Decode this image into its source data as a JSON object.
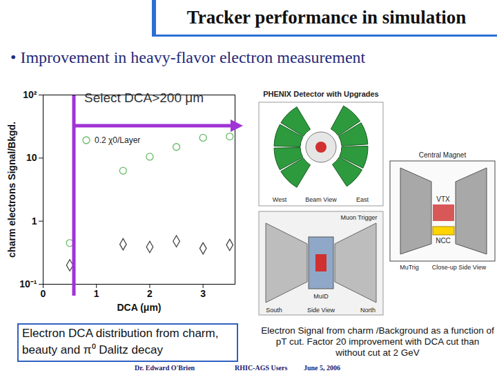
{
  "chart_data": {
    "type": "scatter",
    "title": "Tracker performance in simulation",
    "subtitle": "• Improvement in heavy-flavor electron measurement",
    "x_label": "DCA (μm)",
    "y_label": "charm electrons Signal/Bkgd.",
    "x": [
      0.5,
      1.5,
      2,
      2.5,
      3,
      3.5
    ],
    "series": [
      {
        "name": "0.2 χ0/Layer",
        "color": "#66bb66",
        "marker": "circle",
        "values": [
          0.45,
          6.3,
          10.5,
          15,
          21,
          22
        ]
      },
      {
        "color": "#444444",
        "marker": "diamond",
        "values": [
          0.2,
          0.43,
          0.39,
          0.48,
          0.37,
          0.42
        ]
      }
    ],
    "log": "y",
    "xlim": [
      0,
      3.6
    ],
    "ylim": [
      0.1,
      100
    ],
    "xticks": [
      0,
      1,
      2,
      3
    ],
    "yticks": [
      {
        "value": 0.1,
        "label": "10⁻¹"
      },
      1,
      10,
      {
        "value": 100,
        "label": "10²"
      }
    ],
    "legend": "top-left",
    "annotations": {
      "cut": "Select DCA>200 μm",
      "caption_left": "Electron DCA distribution from charm, beauty and π⁰ Dalitz decay",
      "caption_right": "Electron Signal from charm /Background as a function of pT cut. Factor 20 improvement with DCA cut than without cut at 2 GeV",
      "footer": [
        "Dr. Edward O'Brien",
        "RHIC-AGS Users",
        "June 5, 2006"
      ],
      "diagram": [
        "PHENIX Detector with Upgrades",
        "West",
        "Beam View",
        "East",
        "Central Magnet",
        "VTX",
        "NCC",
        "MuTrig",
        "Close-up Side View",
        "Side View",
        "South",
        "North",
        "MuID",
        "Muon Trigger"
      ]
    }
  }
}
